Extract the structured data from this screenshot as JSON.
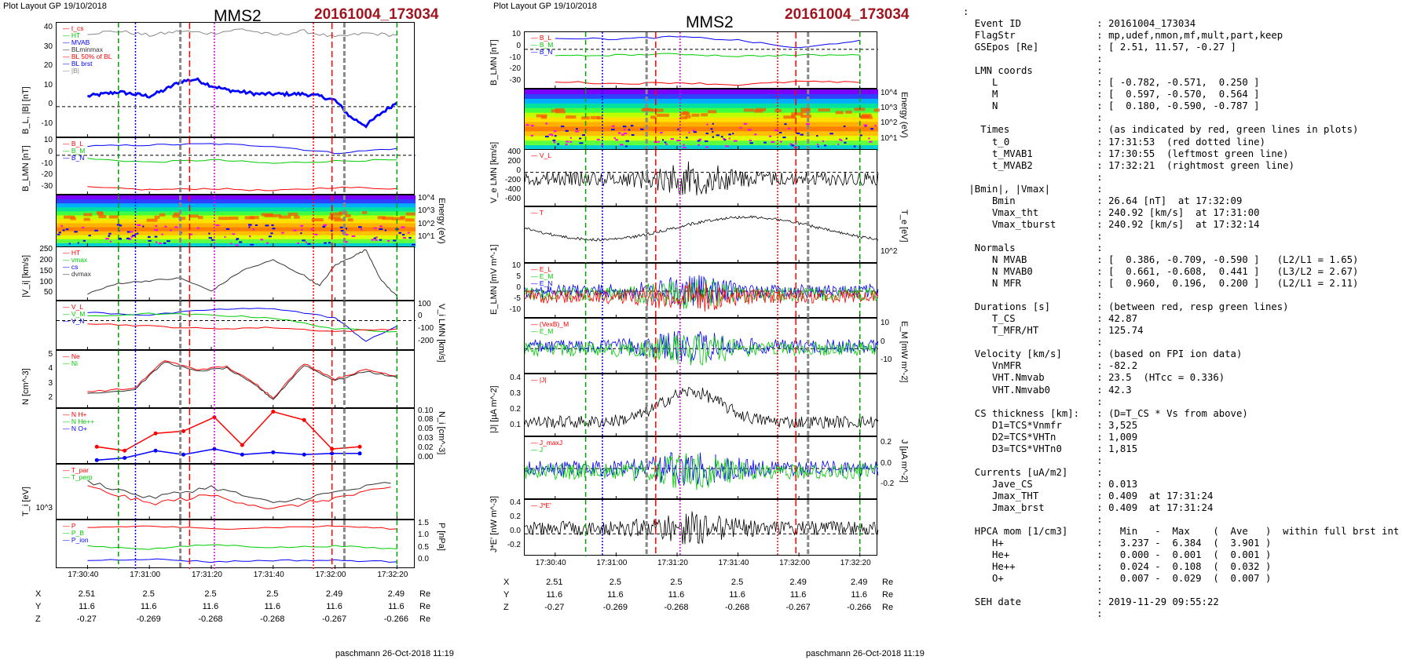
{
  "header": {
    "layout_label": "Plot Layout GP 19/10/2018",
    "spacecraft": "MMS2",
    "event_stamp": "20161004_173034"
  },
  "footer": {
    "credit": "paschmann 26-Oct-2018 11:19"
  },
  "time_axis": {
    "ticks": [
      "17:30:40",
      "17:31:00",
      "17:31:20",
      "17:31:40",
      "17:32:00",
      "17:32:20"
    ],
    "ephemeris": [
      {
        "label": "X",
        "values": [
          "2.51",
          "2.5",
          "2.5",
          "2.5",
          "2.49",
          "2.49"
        ],
        "unit": "Re"
      },
      {
        "label": "Y",
        "values": [
          "11.6",
          "11.6",
          "11.6",
          "11.6",
          "11.6",
          "11.6"
        ],
        "unit": "Re"
      },
      {
        "label": "Z",
        "values": [
          "-0.27",
          "-0.269",
          "-0.268",
          "-0.268",
          "-0.267",
          "-0.266"
        ],
        "unit": "Re"
      }
    ]
  },
  "colors": {
    "event_red": "#a0141e",
    "bl": "#0000ff",
    "bm": "#00cc00",
    "bn": "#ff0000",
    "marker_green": "#00a000",
    "marker_magenta": "#e000e0"
  },
  "chart_data": [
    {
      "type": "line",
      "column": "left",
      "ylabel": "B_L, |B| [nT]",
      "ylim": [
        -15,
        40
      ],
      "ticks": [
        "40",
        "30",
        "20",
        "10",
        "0",
        "-10"
      ],
      "legend": [
        "t_cs",
        "HT",
        "MVAB",
        "BLminmax",
        "BL 50% of BL",
        "BL brst",
        "|B|"
      ],
      "series": [
        {
          "name": "BL brst",
          "x": [
            40,
            45,
            50,
            55,
            60,
            65,
            70,
            75,
            80,
            85,
            90,
            95,
            100,
            105,
            110,
            115,
            120,
            125,
            130,
            135,
            140
          ],
          "y": [
            5,
            6,
            7,
            6,
            5,
            8,
            12,
            13,
            10,
            8,
            7,
            6,
            6,
            6,
            6,
            5,
            3,
            -5,
            -9,
            -3,
            2
          ]
        },
        {
          "name": "|B|",
          "x": [
            40,
            50,
            60,
            70,
            80,
            90,
            100,
            110,
            120,
            130,
            140
          ],
          "y": [
            35,
            36,
            34,
            36,
            35,
            37,
            34,
            36,
            33,
            35,
            34
          ]
        }
      ]
    },
    {
      "type": "line",
      "column": "left",
      "ylabel": "B_LMN [nT]",
      "ylim": [
        -35,
        15
      ],
      "ticks": [
        "10",
        "0",
        "-10",
        "-20",
        "-30"
      ],
      "legend": [
        "B_L",
        "B_M",
        "B_N"
      ],
      "series": [
        {
          "name": "B_L",
          "x": [
            40,
            60,
            80,
            100,
            120,
            140
          ],
          "y": [
            8,
            9,
            10,
            8,
            2,
            6
          ]
        },
        {
          "name": "B_M",
          "x": [
            40,
            60,
            80,
            100,
            120,
            140
          ],
          "y": [
            -3,
            -6,
            -4,
            -7,
            -5,
            -4
          ]
        },
        {
          "name": "B_N",
          "x": [
            40,
            60,
            80,
            100,
            120,
            140
          ],
          "y": [
            -28,
            -30,
            -29,
            -31,
            -28,
            -29
          ]
        }
      ]
    },
    {
      "type": "heatmap",
      "column": "left",
      "ylabel": "Energy (eV)",
      "ticks": [
        "10^4",
        "10^3",
        "10^2",
        "10^1"
      ]
    },
    {
      "type": "line",
      "column": "left",
      "ylabel": "|V_i| [km/s]",
      "ylim": [
        40,
        250
      ],
      "ticks": [
        "250",
        "200",
        "150",
        "100",
        "50"
      ],
      "legend": [
        "HT",
        "vmax",
        "cs",
        "dvmax"
      ],
      "series": [
        {
          "name": "|V_i|",
          "x": [
            40,
            50,
            60,
            70,
            80,
            90,
            100,
            110,
            115,
            120,
            125,
            130,
            135,
            140
          ],
          "y": [
            70,
            110,
            120,
            130,
            80,
            160,
            200,
            140,
            100,
            180,
            210,
            240,
            120,
            60
          ]
        }
      ]
    },
    {
      "type": "line",
      "column": "left",
      "ylabel": "V_i LMN [km/s]",
      "ylim": [
        -220,
        140
      ],
      "ticks": [
        "100",
        "0",
        "-100",
        "-200"
      ],
      "legend": [
        "V_L",
        "V_M",
        "V_N"
      ],
      "series": [
        {
          "name": "V_L",
          "x": [
            40,
            60,
            80,
            100,
            120,
            130,
            140
          ],
          "y": [
            60,
            40,
            80,
            90,
            20,
            -150,
            -40
          ]
        },
        {
          "name": "V_M",
          "x": [
            40,
            60,
            80,
            100,
            120,
            140
          ],
          "y": [
            30,
            50,
            40,
            20,
            -60,
            -80
          ]
        },
        {
          "name": "V_N",
          "x": [
            40,
            60,
            80,
            100,
            120,
            140
          ],
          "y": [
            -20,
            -40,
            -60,
            -50,
            -80,
            -60
          ]
        }
      ]
    },
    {
      "type": "line",
      "column": "left",
      "ylabel": "N [cm^-3]",
      "ylim": [
        1.5,
        5.2
      ],
      "ticks": [
        "5",
        "4",
        "3",
        "2"
      ],
      "legend": [
        "Ne",
        "Ni"
      ],
      "series": [
        {
          "name": "Ne",
          "x": [
            40,
            55,
            65,
            75,
            85,
            95,
            100,
            110,
            120,
            130,
            140
          ],
          "y": [
            2.6,
            2.8,
            4.6,
            4.0,
            4.2,
            3.0,
            2.2,
            4.4,
            3.4,
            4.0,
            3.6
          ]
        },
        {
          "name": "Ni",
          "x": [
            40,
            55,
            65,
            75,
            85,
            95,
            100,
            110,
            120,
            130,
            140
          ],
          "y": [
            2.5,
            2.7,
            4.5,
            3.9,
            4.1,
            2.9,
            2.1,
            4.3,
            3.3,
            3.9,
            3.5
          ]
        }
      ]
    },
    {
      "type": "scatter",
      "column": "left",
      "ylabel": "N_i [cm^-3]",
      "ylim": [
        0,
        0.1
      ],
      "ticks": [
        "0.10",
        "0.08",
        "0.05",
        "0.03",
        "0.02",
        "0.00"
      ],
      "legend": [
        "N  H+",
        "N  He++",
        "N  O+"
      ],
      "series": [
        {
          "name": "N He++",
          "x": [
            43,
            52,
            62,
            71,
            81,
            90,
            100,
            110,
            119,
            128
          ],
          "y": [
            0.032,
            0.025,
            0.056,
            0.06,
            0.085,
            0.035,
            0.095,
            0.08,
            0.028,
            0.032
          ]
        },
        {
          "name": "N O+",
          "x": [
            43,
            52,
            62,
            71,
            81,
            90,
            100,
            110,
            119,
            128
          ],
          "y": [
            0.008,
            0.012,
            0.025,
            0.018,
            0.028,
            0.018,
            0.022,
            0.018,
            0.02,
            0.02
          ]
        }
      ]
    },
    {
      "type": "line",
      "column": "left",
      "ylabel": "T_i [eV]",
      "ticks": [
        "10^3"
      ],
      "legend": [
        "T_par",
        "T_perp"
      ],
      "series": [
        {
          "name": "T_par",
          "x": [
            40,
            60,
            80,
            100,
            120,
            140
          ],
          "y": [
            1500,
            900,
            1300,
            700,
            1100,
            1500
          ]
        },
        {
          "name": "T_perp",
          "x": [
            40,
            60,
            80,
            100,
            120,
            140
          ],
          "y": [
            1300,
            700,
            1000,
            500,
            900,
            1300
          ]
        }
      ]
    },
    {
      "type": "line",
      "column": "left",
      "ylabel": "P [nPa]",
      "ylim": [
        0,
        1.7
      ],
      "ticks": [
        "1.5",
        "1.0",
        "0.5",
        "0.0"
      ],
      "legend": [
        "P",
        "P_B",
        "P_ion"
      ],
      "series": [
        {
          "name": "P",
          "x": [
            40,
            60,
            80,
            100,
            120,
            140
          ],
          "y": [
            1.45,
            1.5,
            1.4,
            1.45,
            1.5,
            1.4
          ]
        },
        {
          "name": "P_B",
          "x": [
            40,
            60,
            80,
            100,
            120,
            140
          ],
          "y": [
            0.8,
            0.7,
            0.85,
            0.75,
            0.8,
            0.7
          ]
        },
        {
          "name": "P_ion",
          "x": [
            40,
            60,
            80,
            100,
            120,
            140
          ],
          "y": [
            0.3,
            0.35,
            0.25,
            0.3,
            0.3,
            0.25
          ]
        }
      ]
    },
    {
      "type": "line",
      "column": "right",
      "ylabel": "B_LMN [nT]",
      "ylim": [
        -35,
        15
      ],
      "ticks": [
        "10",
        "0",
        "-10",
        "-20",
        "-30"
      ],
      "legend": [
        "B_L",
        "B_M",
        "B_N"
      ],
      "series": [
        {
          "name": "B_L",
          "x": [
            40,
            60,
            80,
            100,
            120,
            140
          ],
          "y": [
            10,
            9,
            11,
            8,
            1,
            8
          ]
        },
        {
          "name": "B_M",
          "x": [
            40,
            60,
            80,
            100,
            120,
            140
          ],
          "y": [
            -6,
            -5,
            -4,
            -6,
            -5,
            -5
          ]
        },
        {
          "name": "B_N",
          "x": [
            40,
            60,
            80,
            100,
            120,
            140
          ],
          "y": [
            -28,
            -30,
            -29,
            -31,
            -28,
            -29
          ]
        }
      ]
    },
    {
      "type": "heatmap",
      "column": "right",
      "ylabel": "Energy (eV)",
      "ticks": [
        "10^4",
        "10^3",
        "10^2",
        "10^1"
      ]
    },
    {
      "type": "line",
      "column": "right",
      "ylabel": "V_e LMN [km/s]",
      "ylim": [
        -700,
        450
      ],
      "ticks": [
        "400",
        "200",
        "0",
        "-200",
        "-400",
        "-600"
      ],
      "legend": [
        "V_L"
      ]
    },
    {
      "type": "line",
      "column": "right",
      "ylabel": "T_e [eV]",
      "ticks": [
        "10^2"
      ],
      "legend": [
        "T"
      ]
    },
    {
      "type": "line",
      "column": "right",
      "ylabel": "E_LMN [mV m^-1]",
      "ylim": [
        -12,
        12
      ],
      "ticks": [
        "10",
        "5",
        "0",
        "-5",
        "-10"
      ],
      "legend": [
        "E_L",
        "E_M",
        "E_N"
      ]
    },
    {
      "type": "line",
      "column": "right",
      "ylabel": "E_M [mW m^-2]",
      "ylim": [
        -12,
        14
      ],
      "ticks": [
        "10",
        "0",
        "-10"
      ],
      "legend": [
        "(VexB)_M",
        "E_M"
      ]
    },
    {
      "type": "line",
      "column": "right",
      "ylabel": "|J| [µA m^-2]",
      "ylim": [
        0,
        0.4
      ],
      "ticks": [
        "0.4",
        "0.3",
        "0.2",
        "0.1"
      ],
      "legend": [
        "|J|"
      ]
    },
    {
      "type": "line",
      "column": "right",
      "ylabel": "J [µA m^-2]",
      "ylim": [
        -0.3,
        0.3
      ],
      "ticks": [
        "0.2",
        "0.0",
        "-0.2"
      ],
      "legend": [
        "J_maxJ",
        "J"
      ]
    },
    {
      "type": "line",
      "column": "right",
      "ylabel": "J*E' [nW m^-3]",
      "ylim": [
        -0.3,
        0.45
      ],
      "ticks": [
        "0.4",
        "0.2",
        "0.0",
        "-0.2"
      ],
      "legend": [
        "J*E'"
      ]
    }
  ],
  "info_panel": [
    ":",
    "  Event ID             : 20161004_173034",
    "  FlagStr              : mp,udef,nmon,mf,mult,part,keep",
    "  GSEpos [Re]          : [ 2.51, 11.57, -0.27 ]",
    "                       :",
    "  LMN coords           :",
    "     L                 : [ -0.782, -0.571,  0.250 ]",
    "     M                 : [  0.597, -0.570,  0.564 ]",
    "     N                 : [  0.180, -0.590, -0.787 ]",
    "                       :",
    "   Times               : (as indicated by red, green lines in plots)",
    "     t_0               : 17:31:53  (red dotted line)",
    "     t_MVAB1           : 17:30:55  (leftmost green line)",
    "     t_MVAB2           : 17:32:21  (rightmost green line)",
    "                       :",
    " |Bmin|, |Vmax|        :",
    "     Bmin              : 26.64 [nT]  at 17:32:09",
    "     Vmax_tht          : 240.92 [km/s]  at 17:31:00",
    "     Vmax_tburst       : 240.92 [km/s]  at 17:32:14",
    "                       :",
    "  Normals              :",
    "     N MVAB            : [  0.386, -0.709, -0.590 ]   (L2/L1 = 1.65)",
    "     N MVAB0           : [  0.661, -0.608,  0.441 ]   (L3/L2 = 2.67)",
    "     N MFR             : [  0.960,  0.196,  0.200 ]   (L2/L1 = 2.11)",
    "                       :",
    "  Durations [s]        : (between red, resp green lines)",
    "     T_CS              : 42.87",
    "     T_MFR/HT          : 125.74",
    "                       :",
    "  Velocity [km/s]      : (based on FPI ion data)",
    "     VnMFR             : -82.2",
    "     VHT.Nmvab         : 23.5  (HTcc = 0.336)",
    "     VHT.Nmvab0        : 42.3",
    "                       :",
    "  CS thickness [km]:   : (D=T_CS * Vs from above)",
    "     D1=TCS*Vnmfr      : 3,525",
    "     D2=TCS*VHTn       : 1,009",
    "     D3=TCS*VHTn0      : 1,815",
    "                       :",
    "  Currents [uA/m2]     :",
    "     Jave_CS           : 0.013",
    "     Jmax_THT          : 0.409  at 17:31:24",
    "     Jmax_brst         : 0.409  at 17:31:24",
    "                       :",
    "  HPCA mom [1/cm3]     :   Min   -  Max    (  Ave   )  within full brst int",
    "     H+                :   3.237 -  6.384  (  3.901 )",
    "     He+               :   0.000 -  0.001  (  0.001 )",
    "     He++              :   0.024 -  0.108  (  0.032 )",
    "     O+                :   0.007 -  0.029  (  0.007 )",
    "                       :",
    "  SEH date             : 2019-11-29 09:55:22",
    "                       :"
  ]
}
